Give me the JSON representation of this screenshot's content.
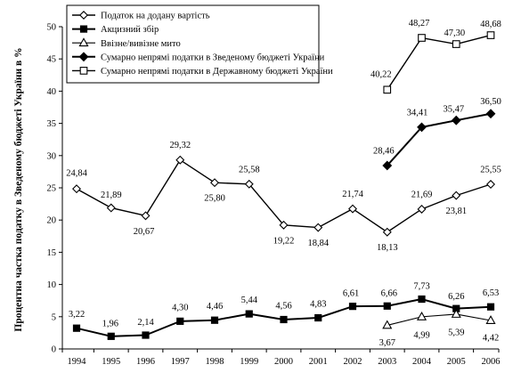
{
  "chart_data": {
    "type": "line",
    "ylabel": "Процентна частка податку в Зведеному бюджеті України в %",
    "xlabel": "",
    "ylim": [
      0,
      50
    ],
    "yticks": [
      "0",
      "5",
      "10",
      "15",
      "20",
      "25",
      "30",
      "35",
      "40",
      "45",
      "50"
    ],
    "categories": [
      "1994",
      "1995",
      "1996",
      "1997",
      "1998",
      "1999",
      "2000",
      "2001",
      "2002",
      "2003",
      "2004",
      "2005",
      "2006"
    ],
    "legend_position": "top-left",
    "grid": false,
    "series": [
      {
        "name": "Податок на додану вартість",
        "marker": "open-diamond",
        "values": [
          24.84,
          21.89,
          20.67,
          29.32,
          25.8,
          25.58,
          19.22,
          18.84,
          21.74,
          18.13,
          21.69,
          23.81,
          25.55
        ],
        "labels": [
          "24,84",
          "21,89",
          "20,67",
          "29,32",
          "25,80",
          "25,58",
          "19,22",
          "18,84",
          "21,74",
          "18,13",
          "21,69",
          "23,81",
          "25,55"
        ]
      },
      {
        "name": "Акцизний збір",
        "marker": "filled-square",
        "values": [
          3.22,
          1.96,
          2.14,
          4.3,
          4.46,
          5.44,
          4.56,
          4.83,
          6.61,
          6.66,
          7.73,
          6.26,
          6.53
        ],
        "labels": [
          "3,22",
          "1,96",
          "2,14",
          "4,30",
          "4,46",
          "5,44",
          "4,56",
          "4,83",
          "6,61",
          "6,66",
          "7,73",
          "6,26",
          "6,53"
        ]
      },
      {
        "name": "Ввізне/вивізне мито",
        "marker": "open-triangle",
        "values": [
          null,
          null,
          null,
          null,
          null,
          null,
          null,
          null,
          null,
          3.67,
          4.99,
          5.39,
          4.42
        ],
        "labels": [
          null,
          null,
          null,
          null,
          null,
          null,
          null,
          null,
          null,
          "3,67",
          "4,99",
          "5,39",
          "4,42"
        ]
      },
      {
        "name": "Сумарно непрямі податки в Зведеному бюджеті України",
        "marker": "filled-diamond",
        "values": [
          null,
          null,
          null,
          null,
          null,
          null,
          null,
          null,
          null,
          28.46,
          34.41,
          35.47,
          36.5
        ],
        "labels": [
          null,
          null,
          null,
          null,
          null,
          null,
          null,
          null,
          null,
          "28,46",
          "34,41",
          "35,47",
          "36,50"
        ]
      },
      {
        "name": "Сумарно непрямі податки в Державному бюджеті України",
        "marker": "open-square",
        "values": [
          null,
          null,
          null,
          null,
          null,
          null,
          null,
          null,
          null,
          40.22,
          48.27,
          47.3,
          48.68
        ],
        "labels": [
          null,
          null,
          null,
          null,
          null,
          null,
          null,
          null,
          null,
          "40,22",
          "48,27",
          "47,30",
          "48,68"
        ]
      }
    ]
  }
}
